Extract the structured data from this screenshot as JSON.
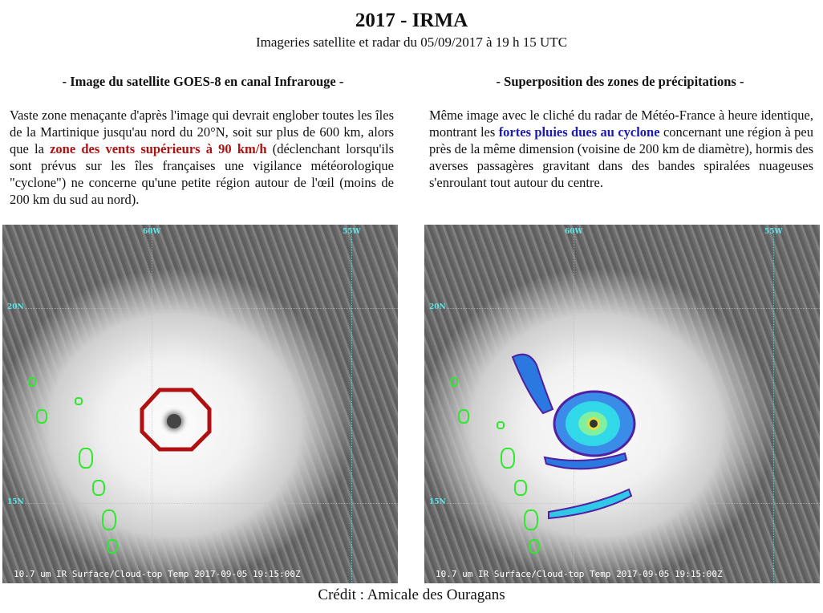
{
  "title": "2017 - IRMA",
  "subtitle": "Imageries satellite et radar du 05/09/2017 à 19 h 15 UTC",
  "left": {
    "heading": "- Image du satellite GOES-8 en canal Infrarouge -",
    "text_1": "Vaste zone menaçante d'après l'image qui devrait englober toutes les îles de la Martinique jusqu'au nord du 20°N, soit sur plus de 600 km, alors que la ",
    "highlight": "zone des vents supérieurs à 90 km/h",
    "text_2": " (déclenchant lorsqu'ils sont prévus sur les îles françaises une vigilance météorologique \"cyclone\") ne concerne qu'une petite région autour de l'œil (moins de 200 km du sud au nord)."
  },
  "right": {
    "heading": "- Superposition des zones de précipitations -",
    "text_1": "Même image avec le cliché du radar de Météo-France à heure identique, montrant les ",
    "highlight": "fortes pluies dues au cyclone",
    "text_2": " concernant une région à peu près de la même dimension (voisine de 200 km de diamètre), hormis des averses passagères gravitant dans des bandes spiralées nuageuses s'enroulant tout autour du centre."
  },
  "image": {
    "lon_labels": [
      "60W",
      "55W"
    ],
    "lat_labels": [
      "20N",
      "15N"
    ],
    "caption": "10.7 um IR Surface/Cloud-top Temp 2017-09-05 19:15:00Z"
  },
  "credit": "Crédit : Amicale des Ouragans",
  "colors": {
    "wind_zone": "#b01010",
    "rain_text": "#1a1ab0",
    "grid": "#5fe8e8",
    "islands": "#2ee82e"
  }
}
